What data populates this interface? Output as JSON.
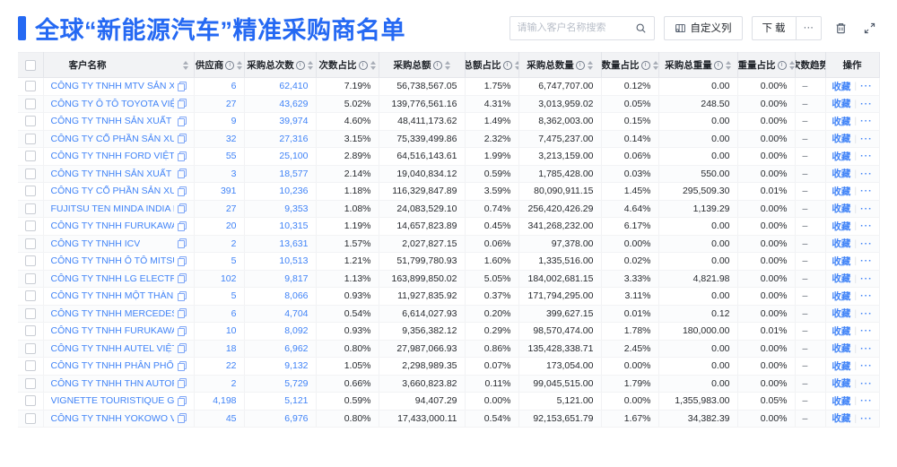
{
  "topbar": {
    "title": "全球“新能源汽车”精准采购商名单",
    "search": {
      "placeholder": "请输入客户名称搜索"
    },
    "customize_label": "自定义列",
    "download_label": "下载",
    "more_label": "···"
  },
  "colors": {
    "accent": "#2569f3",
    "link": "#4083f7",
    "header_bg": "#f2f3f5"
  },
  "table": {
    "ops": {
      "favorite": "收藏",
      "more": "···"
    },
    "columns": [
      {
        "key": "checkbox",
        "label": "",
        "type": "checkbox"
      },
      {
        "key": "name",
        "label": "客户名称",
        "sort": true
      },
      {
        "key": "sup",
        "label": "供应商",
        "info": true,
        "sort": true
      },
      {
        "key": "cnt",
        "label": "采购总次数",
        "info": true,
        "sort": true
      },
      {
        "key": "cnt_pct",
        "label": "次数占比",
        "info": true,
        "sort": true
      },
      {
        "key": "amt",
        "label": "采购总额",
        "info": true,
        "sort": true
      },
      {
        "key": "amt_pct",
        "label": "总额占比",
        "info": true,
        "sort": true
      },
      {
        "key": "qty",
        "label": "采购总数量",
        "info": true,
        "sort": true
      },
      {
        "key": "qty_pct",
        "label": "数量占比",
        "info": true,
        "sort": true
      },
      {
        "key": "wt",
        "label": "采购总重量",
        "info": true,
        "sort": true
      },
      {
        "key": "wt_pct",
        "label": "重量占比",
        "info": true,
        "sort": true
      },
      {
        "key": "trend",
        "label": "次数趋势"
      },
      {
        "key": "ops",
        "label": "操作",
        "type": "ops"
      }
    ],
    "rows": [
      {
        "name": "CÔNG TY TNHH MTV SẢN XUẤ...",
        "sup": "6",
        "cnt": "62,410",
        "cnt_pct": "7.19%",
        "amt": "56,738,567.05",
        "amt_pct": "1.75%",
        "qty": "6,747,707.00",
        "qty_pct": "0.12%",
        "wt": "0.00",
        "wt_pct": "0.00%",
        "trend": "–"
      },
      {
        "name": "CÔNG TY Ô TÔ TOYOTA VIỆT ...",
        "sup": "27",
        "cnt": "43,629",
        "cnt_pct": "5.02%",
        "amt": "139,776,561.16",
        "amt_pct": "4.31%",
        "qty": "3,013,959.02",
        "qty_pct": "0.05%",
        "wt": "248.50",
        "wt_pct": "0.00%",
        "trend": "–"
      },
      {
        "name": "CÔNG TY TNHH SẢN XUẤT VÀ ...",
        "sup": "9",
        "cnt": "39,974",
        "cnt_pct": "4.60%",
        "amt": "48,411,173.62",
        "amt_pct": "1.49%",
        "qty": "8,362,003.00",
        "qty_pct": "0.15%",
        "wt": "0.00",
        "wt_pct": "0.00%",
        "trend": "–"
      },
      {
        "name": "CÔNG TY CỔ PHẦN SẢN XUẤT...",
        "sup": "32",
        "cnt": "27,316",
        "cnt_pct": "3.15%",
        "amt": "75,339,499.86",
        "amt_pct": "2.32%",
        "qty": "7,475,237.00",
        "qty_pct": "0.14%",
        "wt": "0.00",
        "wt_pct": "0.00%",
        "trend": "–"
      },
      {
        "name": "CÔNG TY TNHH FORD VIỆT NAM",
        "sup": "55",
        "cnt": "25,100",
        "cnt_pct": "2.89%",
        "amt": "64,516,143.61",
        "amt_pct": "1.99%",
        "qty": "3,213,159.00",
        "qty_pct": "0.06%",
        "wt": "0.00",
        "wt_pct": "0.00%",
        "trend": "–"
      },
      {
        "name": "CÔNG TY TNHH SẢN XUẤT VÀ ...",
        "sup": "3",
        "cnt": "18,577",
        "cnt_pct": "2.14%",
        "amt": "19,040,834.12",
        "amt_pct": "0.59%",
        "qty": "1,785,428.00",
        "qty_pct": "0.03%",
        "wt": "550.00",
        "wt_pct": "0.00%",
        "trend": "–"
      },
      {
        "name": "CÔNG TY CỔ PHẦN SẢN XUẤT...",
        "sup": "391",
        "cnt": "10,236",
        "cnt_pct": "1.18%",
        "amt": "116,329,847.89",
        "amt_pct": "3.59%",
        "qty": "80,090,911.15",
        "qty_pct": "1.45%",
        "wt": "295,509.30",
        "wt_pct": "0.01%",
        "trend": "–"
      },
      {
        "name": "FUJITSU TEN MINDA INDIA PVT...",
        "sup": "27",
        "cnt": "9,353",
        "cnt_pct": "1.08%",
        "amt": "24,083,529.10",
        "amt_pct": "0.74%",
        "qty": "256,420,426.29",
        "qty_pct": "4.64%",
        "wt": "1,139.29",
        "wt_pct": "0.00%",
        "trend": "–"
      },
      {
        "name": "CÔNG TY TNHH FURUKAWA A...",
        "sup": "20",
        "cnt": "10,315",
        "cnt_pct": "1.19%",
        "amt": "14,657,823.89",
        "amt_pct": "0.45%",
        "qty": "341,268,232.00",
        "qty_pct": "6.17%",
        "wt": "0.00",
        "wt_pct": "0.00%",
        "trend": "–"
      },
      {
        "name": "CÔNG TY TNHH ICV",
        "sup": "2",
        "cnt": "13,631",
        "cnt_pct": "1.57%",
        "amt": "2,027,827.15",
        "amt_pct": "0.06%",
        "qty": "97,378.00",
        "qty_pct": "0.00%",
        "wt": "0.00",
        "wt_pct": "0.00%",
        "trend": "–"
      },
      {
        "name": "CÔNG TY TNHH Ô TÔ MITSUBI...",
        "sup": "5",
        "cnt": "10,513",
        "cnt_pct": "1.21%",
        "amt": "51,799,780.93",
        "amt_pct": "1.60%",
        "qty": "1,335,516.00",
        "qty_pct": "0.02%",
        "wt": "0.00",
        "wt_pct": "0.00%",
        "trend": "–"
      },
      {
        "name": "CÔNG TY TNHH LG ELECTRON...",
        "sup": "102",
        "cnt": "9,817",
        "cnt_pct": "1.13%",
        "amt": "163,899,850.02",
        "amt_pct": "5.05%",
        "qty": "184,002,681.15",
        "qty_pct": "3.33%",
        "wt": "4,821.98",
        "wt_pct": "0.00%",
        "trend": "–"
      },
      {
        "name": "CÔNG TY TNHH MỘT THÀNH V...",
        "sup": "5",
        "cnt": "8,066",
        "cnt_pct": "0.93%",
        "amt": "11,927,835.92",
        "amt_pct": "0.37%",
        "qty": "171,794,295.00",
        "qty_pct": "3.11%",
        "wt": "0.00",
        "wt_pct": "0.00%",
        "trend": "–"
      },
      {
        "name": "CÔNG TY TNHH MERCEDES–B...",
        "sup": "6",
        "cnt": "4,704",
        "cnt_pct": "0.54%",
        "amt": "6,614,027.93",
        "amt_pct": "0.20%",
        "qty": "399,627.15",
        "qty_pct": "0.01%",
        "wt": "0.12",
        "wt_pct": "0.00%",
        "trend": "–"
      },
      {
        "name": "CÔNG TY TNHH FURUKAWA A...",
        "sup": "10",
        "cnt": "8,092",
        "cnt_pct": "0.93%",
        "amt": "9,356,382.12",
        "amt_pct": "0.29%",
        "qty": "98,570,474.00",
        "qty_pct": "1.78%",
        "wt": "180,000.00",
        "wt_pct": "0.01%",
        "trend": "–"
      },
      {
        "name": "CÔNG TY TNHH AUTEL VIỆT N...",
        "sup": "18",
        "cnt": "6,962",
        "cnt_pct": "0.80%",
        "amt": "27,987,066.93",
        "amt_pct": "0.86%",
        "qty": "135,428,338.71",
        "qty_pct": "2.45%",
        "wt": "0.00",
        "wt_pct": "0.00%",
        "trend": "–"
      },
      {
        "name": "CÔNG TY TNHH PHÂN PHỐI T...",
        "sup": "22",
        "cnt": "9,132",
        "cnt_pct": "1.05%",
        "amt": "2,298,989.35",
        "amt_pct": "0.07%",
        "qty": "173,054.00",
        "qty_pct": "0.00%",
        "wt": "0.00",
        "wt_pct": "0.00%",
        "trend": "–"
      },
      {
        "name": "CÔNG TY TNHH THN AUTOPAR...",
        "sup": "2",
        "cnt": "5,729",
        "cnt_pct": "0.66%",
        "amt": "3,660,823.82",
        "amt_pct": "0.11%",
        "qty": "99,045,515.00",
        "qty_pct": "1.79%",
        "wt": "0.00",
        "wt_pct": "0.00%",
        "trend": "–"
      },
      {
        "name": "VIGNETTE TOURISTIQUE G UNI...",
        "sup": "4,198",
        "cnt": "5,121",
        "cnt_pct": "0.59%",
        "amt": "94,407.29",
        "amt_pct": "0.00%",
        "qty": "5,121.00",
        "qty_pct": "0.00%",
        "wt": "1,355,983.00",
        "wt_pct": "0.05%",
        "trend": "–"
      },
      {
        "name": "CÔNG TY TNHH YOKOWO VIỆT...",
        "sup": "45",
        "cnt": "6,976",
        "cnt_pct": "0.80%",
        "amt": "17,433,000.11",
        "amt_pct": "0.54%",
        "qty": "92,153,651.79",
        "qty_pct": "1.67%",
        "wt": "34,382.39",
        "wt_pct": "0.00%",
        "trend": "–"
      }
    ]
  }
}
